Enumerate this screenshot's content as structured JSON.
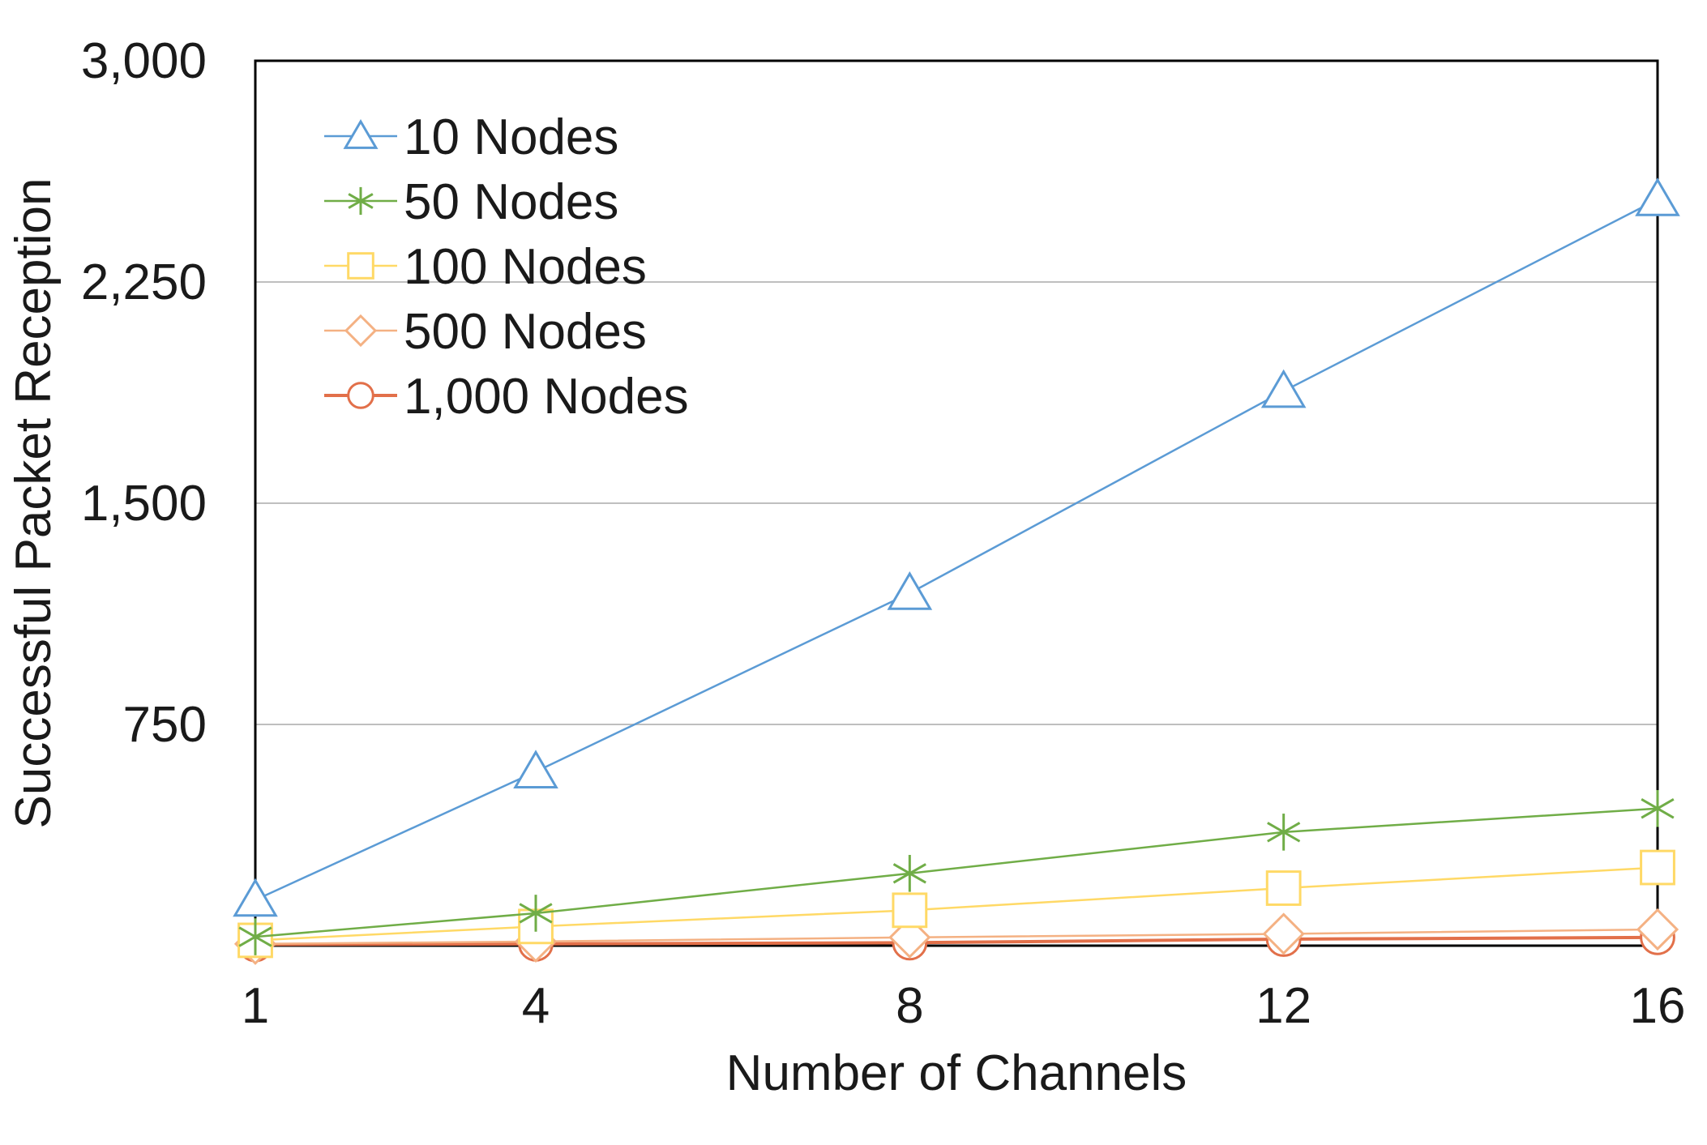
{
  "chart_data": {
    "type": "line",
    "title": "",
    "xlabel": "Number of Channels",
    "ylabel": "Successful Packet Reception",
    "x": [
      1,
      4,
      8,
      12,
      16
    ],
    "x_tick_labels": [
      "1",
      "4",
      "8",
      "12",
      "16"
    ],
    "ylim": [
      0,
      3000
    ],
    "y_ticks": [
      750,
      1500,
      2250,
      3000
    ],
    "y_tick_labels": [
      "750",
      "1,500",
      "2,250",
      "3,000"
    ],
    "grid": "horizontal",
    "legend_position": "top-left",
    "series": [
      {
        "name": "10 Nodes",
        "color": "#5b9bd5",
        "marker": "triangle",
        "values": [
          155,
          590,
          1195,
          1880,
          2530
        ]
      },
      {
        "name": "50 Nodes",
        "color": "#70ad47",
        "marker": "asterisk",
        "values": [
          30,
          110,
          245,
          385,
          465
        ]
      },
      {
        "name": "100 Nodes",
        "color": "#ffd966",
        "marker": "square",
        "values": [
          18,
          65,
          120,
          195,
          265
        ]
      },
      {
        "name": "500 Nodes",
        "color": "#f4b183",
        "marker": "diamond",
        "values": [
          6,
          14,
          28,
          40,
          55
        ]
      },
      {
        "name": "1,000 Nodes",
        "color": "#e2704a",
        "marker": "circle",
        "values": [
          4,
          6,
          10,
          22,
          28
        ]
      }
    ]
  }
}
